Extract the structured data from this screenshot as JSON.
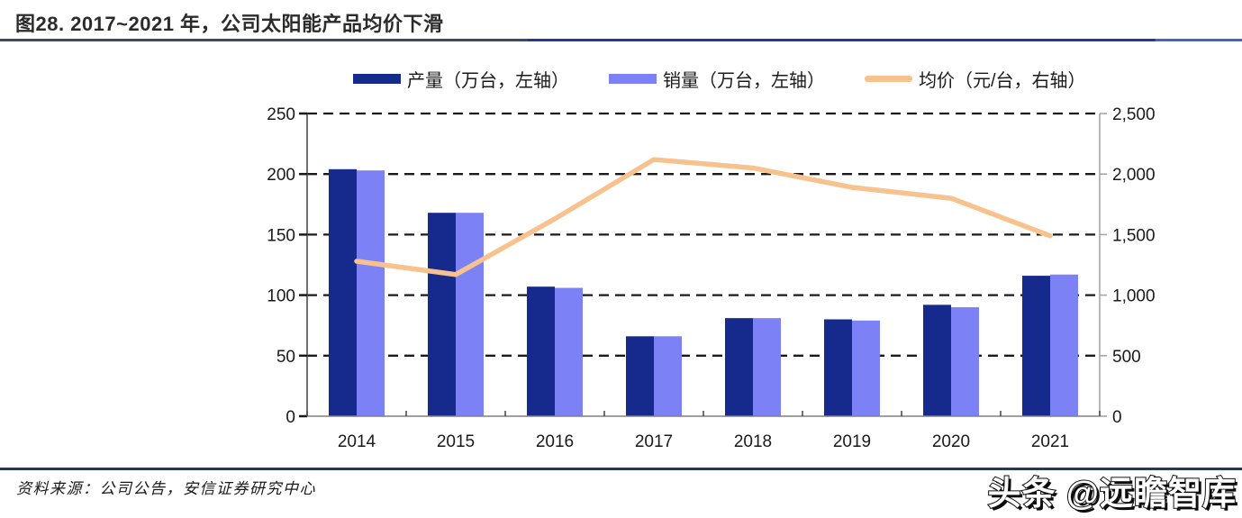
{
  "figure": {
    "title": "图28. 2017~2021 年，公司太阳能产品均价下滑",
    "source_label": "资料来源：公司公告，安信证券研究中心",
    "watermark": "头条 @远瞻智库"
  },
  "colors": {
    "production_bar": "#16298c",
    "sales_bar": "#7c81f5",
    "price_line": "#f8c28f",
    "title_rule_left": "#3c4a66",
    "title_rule_right": "#1f3c93",
    "footer_rule": "#1f3864",
    "gridline": "#1a1a1a",
    "left_axis": "#4d4d4d",
    "bottom_axis": "#808080",
    "right_axis": "#a6a6a6"
  },
  "legend": {
    "position": "top",
    "items": [
      {
        "label": "产量（万台，左轴）",
        "swatch": "bar",
        "color": "#16298c"
      },
      {
        "label": "销量（万台，左轴）",
        "swatch": "bar",
        "color": "#7c81f5"
      },
      {
        "label": "均价（元/台，右轴）",
        "swatch": "line",
        "color": "#f8c28f"
      }
    ]
  },
  "chart_data": {
    "type": "combo-bar-line",
    "title": "图28. 2017~2021 年，公司太阳能产品均价下滑",
    "categories": [
      "2014",
      "2015",
      "2016",
      "2017",
      "2018",
      "2019",
      "2020",
      "2021"
    ],
    "series": [
      {
        "name": "产量（万台，左轴）",
        "type": "bar",
        "axis": "left",
        "color": "#16298c",
        "values": [
          204,
          168,
          107,
          66,
          81,
          80,
          92,
          116
        ]
      },
      {
        "name": "销量（万台，左轴）",
        "type": "bar",
        "axis": "left",
        "color": "#7c81f5",
        "values": [
          203,
          168,
          106,
          66,
          81,
          79,
          90,
          117
        ]
      },
      {
        "name": "均价（元/台，右轴）",
        "type": "line",
        "axis": "right",
        "color": "#f8c28f",
        "values": [
          1280,
          1170,
          1630,
          2120,
          2050,
          1890,
          1800,
          1490
        ]
      }
    ],
    "left_axis": {
      "min": 0,
      "max": 250,
      "ticks": [
        0,
        50,
        100,
        150,
        200,
        250
      ],
      "tick_labels": [
        "0",
        "50",
        "100",
        "150",
        "200",
        "250"
      ]
    },
    "right_axis": {
      "min": 0,
      "max": 2500,
      "ticks": [
        0,
        500,
        1000,
        1500,
        2000,
        2500
      ],
      "tick_labels": [
        "0",
        "500",
        "1,000",
        "1,500",
        "2,000",
        "2,500"
      ]
    },
    "grid": "dashed-horizontal",
    "legend_position": "top"
  }
}
